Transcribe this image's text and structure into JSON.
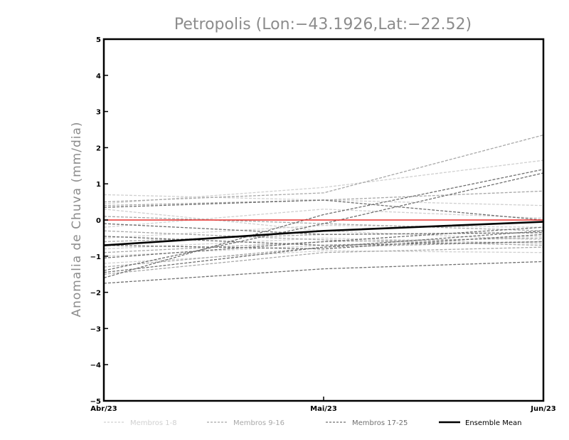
{
  "chart_data": {
    "type": "line",
    "title": "Petropolis (Lon:−43.1926,Lat:−22.52)",
    "xlabel": "",
    "ylabel": "Anomalia de Chuva (mm/dia)",
    "categories": [
      "Abr/23",
      "Mai/23",
      "Jun/23"
    ],
    "ylim": [
      -5,
      5
    ],
    "yticks": [
      "5",
      "4",
      "3",
      "2",
      "1",
      "0",
      "−1",
      "−2",
      "−3",
      "−4",
      "−5"
    ],
    "reference_line": {
      "y": 0,
      "color": "#e8312f"
    },
    "colors": {
      "group1": "#d0d0d0",
      "group2": "#a8a8a8",
      "group3": "#707070",
      "mean": "#000000"
    },
    "legend": {
      "placement": "bottom",
      "items": [
        "Membros 1-8",
        "Membros 9-16",
        "Membros 17-25",
        "Ensemble Mean"
      ]
    },
    "series": [
      {
        "group": 1,
        "values": [
          0.7,
          0.55,
          0.4
        ]
      },
      {
        "group": 1,
        "values": [
          0.45,
          0.9,
          1.65
        ]
      },
      {
        "group": 1,
        "values": [
          -0.2,
          0.3,
          0.05
        ]
      },
      {
        "group": 1,
        "values": [
          -0.5,
          -0.15,
          -0.2
        ]
      },
      {
        "group": 1,
        "values": [
          -0.8,
          -0.5,
          -0.65
        ]
      },
      {
        "group": 1,
        "values": [
          -1.0,
          -0.7,
          -0.45
        ]
      },
      {
        "group": 1,
        "values": [
          -1.2,
          -0.85,
          -0.9
        ]
      },
      {
        "group": 1,
        "values": [
          0.3,
          -0.3,
          -0.55
        ]
      },
      {
        "group": 2,
        "values": [
          0.5,
          0.75,
          2.35
        ]
      },
      {
        "group": 2,
        "values": [
          0.4,
          0.55,
          0.8
        ]
      },
      {
        "group": 2,
        "values": [
          0.1,
          -0.1,
          -0.3
        ]
      },
      {
        "group": 2,
        "values": [
          -0.3,
          -0.55,
          -0.7
        ]
      },
      {
        "group": 2,
        "values": [
          -0.6,
          -0.4,
          -0.35
        ]
      },
      {
        "group": 2,
        "values": [
          -0.9,
          -0.6,
          -0.5
        ]
      },
      {
        "group": 2,
        "values": [
          -1.3,
          -0.75,
          -0.6
        ]
      },
      {
        "group": 2,
        "values": [
          -1.5,
          -0.9,
          -0.75
        ]
      },
      {
        "group": 3,
        "values": [
          -1.6,
          0.15,
          1.4
        ]
      },
      {
        "group": 3,
        "values": [
          -1.4,
          -0.1,
          1.3
        ]
      },
      {
        "group": 3,
        "values": [
          0.35,
          0.55,
          0.0
        ]
      },
      {
        "group": 3,
        "values": [
          -0.1,
          -0.4,
          -0.35
        ]
      },
      {
        "group": 3,
        "values": [
          -0.45,
          -0.7,
          -0.6
        ]
      },
      {
        "group": 3,
        "values": [
          -0.7,
          -0.8,
          -0.4
        ]
      },
      {
        "group": 3,
        "values": [
          -1.05,
          -0.6,
          -0.2
        ]
      },
      {
        "group": 3,
        "values": [
          -1.45,
          -0.75,
          -0.3
        ]
      },
      {
        "group": 3,
        "values": [
          -1.75,
          -1.35,
          -1.15
        ]
      }
    ],
    "mean": {
      "name": "Ensemble Mean",
      "values": [
        -0.7,
        -0.3,
        -0.05
      ]
    }
  }
}
